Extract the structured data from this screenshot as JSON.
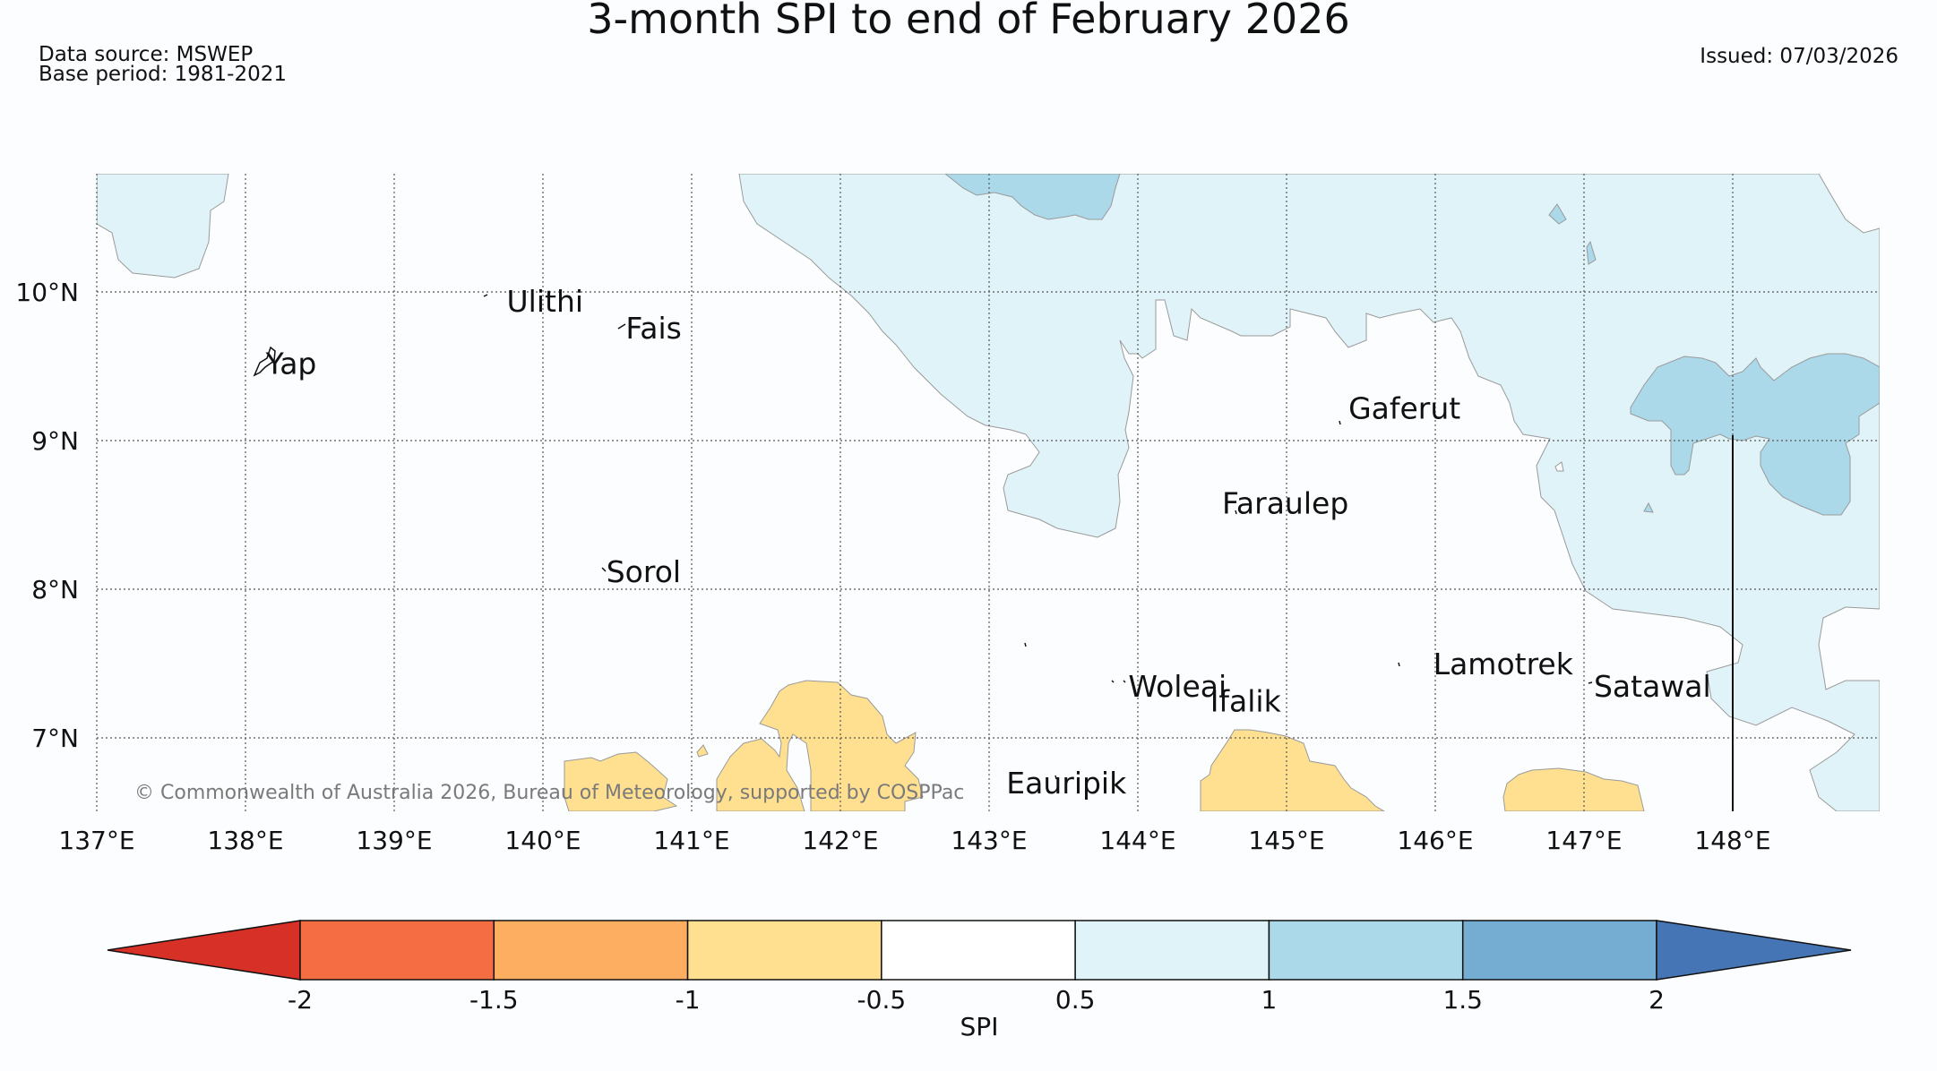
{
  "title": "3-month SPI to end of February 2026",
  "data_source": "Data source: MSWEP",
  "base_period": "Base period: 1981-2021",
  "issued": "Issued: 07/03/2026",
  "copyright": "© Commonwealth of Australia 2026, Bureau of Meteorology, supported by COSPPac",
  "lat_labels": [
    "10°N",
    "9°N",
    "8°N",
    "7°N"
  ],
  "lon_labels": [
    "137°E",
    "138°E",
    "139°E",
    "140°E",
    "141°E",
    "142°E",
    "143°E",
    "144°E",
    "145°E",
    "146°E",
    "147°E",
    "148°E"
  ],
  "places": [
    {
      "name": "Yap",
      "lon": 138.1,
      "lat": 9.52
    },
    {
      "name": "Ulithi",
      "lon": 139.72,
      "lat": 9.94
    },
    {
      "name": "Fais",
      "lon": 140.52,
      "lat": 9.76
    },
    {
      "name": "Sorol",
      "lon": 140.39,
      "lat": 8.12
    },
    {
      "name": "Gaferut",
      "lon": 145.38,
      "lat": 9.22
    },
    {
      "name": "Faraulep",
      "lon": 144.53,
      "lat": 8.58
    },
    {
      "name": "Woleai",
      "lon": 143.9,
      "lat": 7.35
    },
    {
      "name": "Ifalik",
      "lon": 144.45,
      "lat": 7.25
    },
    {
      "name": "Lamotrek",
      "lon": 145.95,
      "lat": 7.5
    },
    {
      "name": "Satawal",
      "lon": 147.03,
      "lat": 7.35
    },
    {
      "name": "Eauripik",
      "lon": 143.08,
      "lat": 6.7
    }
  ],
  "legend": {
    "label": "SPI",
    "ticks": [
      "-2",
      "-1.5",
      "-1",
      "-0.5",
      "0.5",
      "1",
      "1.5",
      "2"
    ],
    "colors": [
      "#d73027",
      "#f46d43",
      "#fdae61",
      "#fee090",
      "#ffffff",
      "#e0f3f8",
      "#abd9e9",
      "#74add1",
      "#4575b4"
    ]
  }
}
